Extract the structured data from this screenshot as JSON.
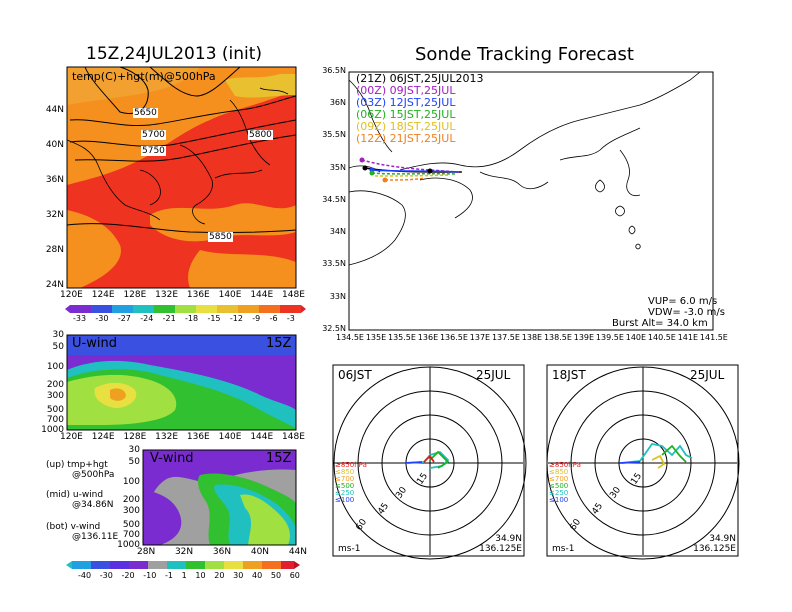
{
  "left_title": "15Z,24JUL2013 (init)",
  "right_title": "Sonde Tracking Forecast",
  "top_map": {
    "label": "temp(C)+hgt(m)@500hPa",
    "lat_ticks": [
      "44N",
      "40N",
      "36N",
      "32N",
      "28N",
      "24N"
    ],
    "lon_ticks": [
      "120E",
      "124E",
      "128E",
      "132E",
      "136E",
      "140E",
      "144E",
      "148E"
    ],
    "contours": [
      "5650",
      "5700",
      "5750",
      "5800",
      "5850"
    ],
    "colorbar": [
      "-33",
      "-30",
      "-27",
      "-24",
      "-21",
      "-18",
      "-15",
      "-12",
      "-9",
      "-6",
      "-3"
    ]
  },
  "uwind": {
    "title": "U-wind",
    "time": "15Z",
    "levels": [
      "30",
      "50",
      "100",
      "200",
      "300",
      "500",
      "700",
      "1000"
    ],
    "lon_ticks": [
      "120E",
      "124E",
      "128E",
      "132E",
      "136E",
      "140E",
      "144E",
      "148E"
    ]
  },
  "vwind": {
    "title": "V-wind",
    "time": "15Z",
    "levels": [
      "30",
      "50",
      "100",
      "200",
      "300",
      "500",
      "700",
      "1000"
    ],
    "lat_ticks": [
      "28N",
      "32N",
      "36N",
      "40N",
      "44N"
    ],
    "colorbar": [
      "-40",
      "-30",
      "-20",
      "-10",
      "-1",
      "1",
      "10",
      "20",
      "30",
      "40",
      "50",
      "60"
    ]
  },
  "legend_notes": [
    {
      "a": "(up) tmp+hgt",
      "b": "@500hPa"
    },
    {
      "a": "(mid) u-wind",
      "b": "@34.86N"
    },
    {
      "a": "(bot) v-wind",
      "b": "@136.11E"
    }
  ],
  "track_map": {
    "lat_ticks": [
      "36.5N",
      "36N",
      "35.5N",
      "35N",
      "34.5N",
      "34N",
      "33.5N",
      "33N",
      "32.5N"
    ],
    "lon_ticks": [
      "134.5E",
      "135E",
      "135.5E",
      "136E",
      "136.5E",
      "137E",
      "137.5E",
      "138E",
      "138.5E",
      "139E",
      "139.5E",
      "140E",
      "140.5E",
      "141E",
      "141.5E"
    ],
    "runs": [
      {
        "label": "(21Z) 06JST,25JUL2013",
        "color": "#000000"
      },
      {
        "label": "(00Z) 09JST,25JUL",
        "color": "#a020c0"
      },
      {
        "label": "(03Z) 12JST,25JUL",
        "color": "#2040ff"
      },
      {
        "label": "(06Z) 15JST,25JUL",
        "color": "#20b020"
      },
      {
        "label": "(09Z) 18JST,25JUL",
        "color": "#e0c020"
      },
      {
        "label": "(12Z) 21JST,25JUL",
        "color": "#f08020"
      }
    ],
    "info": [
      "VUP= 6.0 m/s",
      "VDW= -3.0 m/s",
      "Burst Alt= 34.0 km"
    ]
  },
  "hodo_left": {
    "time": "06JST",
    "date": "25JUL",
    "unit": "ms-1",
    "coord1": "34.9N",
    "coord2": "136.125E"
  },
  "hodo_right": {
    "time": "18JST",
    "date": "25JUL",
    "unit": "ms-1",
    "coord1": "34.9N",
    "coord2": "136.125E"
  },
  "hodo_rings": [
    "15",
    "30",
    "45",
    "60"
  ],
  "hodo_levels": [
    {
      "label": "≥850hPa",
      "color": "#e02020"
    },
    {
      "label": "≤850",
      "color": "#e0c020"
    },
    {
      "label": "≤700",
      "color": "#f0a020"
    },
    {
      "label": "≤500",
      "color": "#20b020"
    },
    {
      "label": "≤250",
      "color": "#20c0c0"
    },
    {
      "label": "≤100",
      "color": "#2040ff"
    }
  ]
}
